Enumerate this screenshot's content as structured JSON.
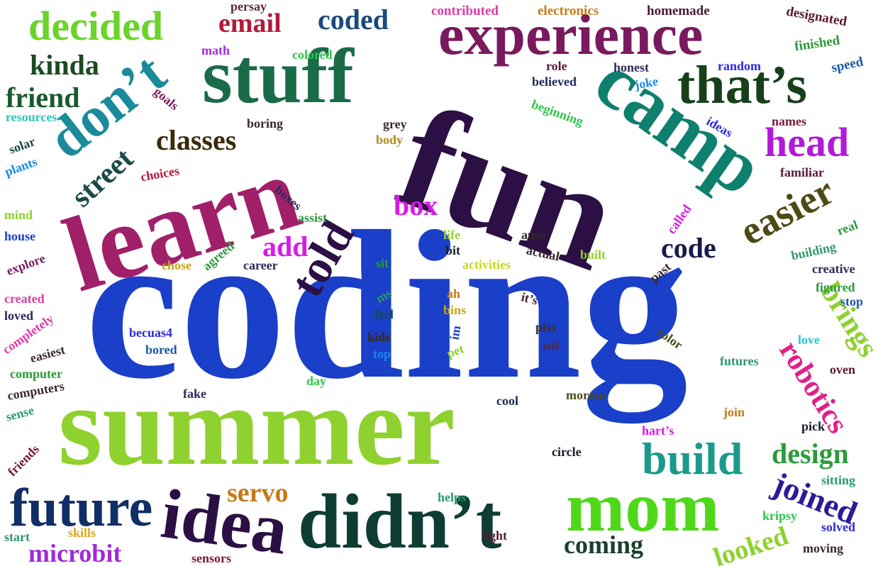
{
  "words": [
    {
      "text": "coding",
      "color": "#1a3fc8"
    },
    {
      "text": "summer",
      "color": "#8fd12e"
    },
    {
      "text": "fun",
      "color": "#2c0f44"
    },
    {
      "text": "learn",
      "color": "#a0206a"
    },
    {
      "text": "stuff",
      "color": "#1a6b4a"
    },
    {
      "text": "camp",
      "color": "#0f7f6e"
    },
    {
      "text": "experience",
      "color": "#7a1a5e"
    },
    {
      "text": "didn’t",
      "color": "#0d3d33"
    },
    {
      "text": "mom",
      "color": "#4fd81a"
    },
    {
      "text": "idea",
      "color": "#2c0f44"
    },
    {
      "text": "future",
      "color": "#112f66"
    },
    {
      "text": "don’t",
      "color": "#1b8a9a"
    },
    {
      "text": "that’s",
      "color": "#17401a"
    },
    {
      "text": "decided",
      "color": "#6bd42c"
    },
    {
      "text": "build",
      "color": "#1b9a8c"
    },
    {
      "text": "easier",
      "color": "#4f4a14"
    },
    {
      "text": "head",
      "color": "#b21ad8"
    },
    {
      "text": "told",
      "color": "#2c0f44"
    },
    {
      "text": "robotics",
      "color": "#e0208a"
    },
    {
      "text": "brings",
      "color": "#8fd12e"
    },
    {
      "text": "joined",
      "color": "#2c1a9a"
    },
    {
      "text": "design",
      "color": "#2c9a3a"
    },
    {
      "text": "looked",
      "color": "#8fd12e"
    },
    {
      "text": "microbit",
      "color": "#a02ad8"
    },
    {
      "text": "coming",
      "color": "#1a3f2e"
    },
    {
      "text": "classes",
      "color": "#3a2a0a"
    },
    {
      "text": "friend",
      "color": "#1a5a2e"
    },
    {
      "text": "kinda",
      "color": "#1a4a22"
    },
    {
      "text": "email",
      "color": "#b01a3a"
    },
    {
      "text": "coded",
      "color": "#1a4a7a"
    },
    {
      "text": "street",
      "color": "#1a4a4a"
    },
    {
      "text": "box",
      "color": "#d81ae8"
    },
    {
      "text": "add",
      "color": "#d81ae8"
    },
    {
      "text": "code",
      "color": "#1a1a4a"
    },
    {
      "text": "servo",
      "color": "#c47a1a"
    },
    {
      "text": "persay",
      "color": "#5a2a3a"
    },
    {
      "text": "contributed",
      "color": "#e03aa8"
    },
    {
      "text": "electronics",
      "color": "#c47a1a"
    },
    {
      "text": "homemade",
      "color": "#4a1a3a"
    },
    {
      "text": "designated",
      "color": "#5a1a2a"
    },
    {
      "text": "finished",
      "color": "#2c9a3a"
    },
    {
      "text": "speed",
      "color": "#1a5aa8"
    },
    {
      "text": "math",
      "color": "#a02ad8"
    },
    {
      "text": "colored",
      "color": "#2cc84a"
    },
    {
      "text": "random",
      "color": "#2c2ad8"
    },
    {
      "text": "honest",
      "color": "#2c2a5a"
    },
    {
      "text": "role",
      "color": "#5a1a3a"
    },
    {
      "text": "believed",
      "color": "#1a2a5a"
    },
    {
      "text": "joke",
      "color": "#1a8ae8"
    },
    {
      "text": "beginning",
      "color": "#2cc84a"
    },
    {
      "text": "resources",
      "color": "#2cc8b8"
    },
    {
      "text": "goals",
      "color": "#7a1a5e"
    },
    {
      "text": "boring",
      "color": "#3a2a2a"
    },
    {
      "text": "grey",
      "color": "#3a2a2a"
    },
    {
      "text": "body",
      "color": "#b08a1a"
    },
    {
      "text": "ideas",
      "color": "#2c2ad8"
    },
    {
      "text": "names",
      "color": "#7a1a3a"
    },
    {
      "text": "solar",
      "color": "#1a4a4a"
    },
    {
      "text": "plants",
      "color": "#1a8ae8"
    },
    {
      "text": "choices",
      "color": "#b01a3a"
    },
    {
      "text": "familiar",
      "color": "#5a1a3a"
    },
    {
      "text": "boxes",
      "color": "#2c2a5a"
    },
    {
      "text": "mind",
      "color": "#8fd12e"
    },
    {
      "text": "assist",
      "color": "#2c9a3a"
    },
    {
      "text": "called",
      "color": "#d81ae8"
    },
    {
      "text": "real",
      "color": "#2c9a3a"
    },
    {
      "text": "house",
      "color": "#1a3fc8"
    },
    {
      "text": "life",
      "color": "#8fd12e"
    },
    {
      "text": "ause",
      "color": "#3a2a2a"
    },
    {
      "text": "building",
      "color": "#2c9a6a"
    },
    {
      "text": "explore",
      "color": "#7a1a5e"
    },
    {
      "text": "chose",
      "color": "#c4a81a"
    },
    {
      "text": "agreed",
      "color": "#2c9a3a"
    },
    {
      "text": "career",
      "color": "#2c2a5a"
    },
    {
      "text": "sit",
      "color": "#2c9a3a"
    },
    {
      "text": "bit",
      "color": "#1a1a2a"
    },
    {
      "text": "actual",
      "color": "#3a2a2a"
    },
    {
      "text": "built",
      "color": "#8fd12e"
    },
    {
      "text": "activities",
      "color": "#c8d81a"
    },
    {
      "text": "past",
      "color": "#3a2a2a"
    },
    {
      "text": "creative",
      "color": "#2c2a5a"
    },
    {
      "text": "created",
      "color": "#e03aa8"
    },
    {
      "text": "loved",
      "color": "#2c2a5a"
    },
    {
      "text": "completely",
      "color": "#e03aa8"
    },
    {
      "text": "ms",
      "color": "#2c9a6a"
    },
    {
      "text": "feel",
      "color": "#1a4a4a"
    },
    {
      "text": "ah",
      "color": "#c47a1a"
    },
    {
      "text": "bins",
      "color": "#c4a81a"
    },
    {
      "text": "it’s",
      "color": "#3a2a2a"
    },
    {
      "text": "figured",
      "color": "#2c9a3a"
    },
    {
      "text": "stop",
      "color": "#1a5aa8"
    },
    {
      "text": "becuas4",
      "color": "#2c2ad8"
    },
    {
      "text": "bored",
      "color": "#1a5aa8"
    },
    {
      "text": "kids",
      "color": "#3a2a0a"
    },
    {
      "text": "top",
      "color": "#1a8ae8"
    },
    {
      "text": "im",
      "color": "#1a3fc8"
    },
    {
      "text": "pet",
      "color": "#8fd12e"
    },
    {
      "text": "piss",
      "color": "#3a2a2a"
    },
    {
      "text": "wii",
      "color": "#5a2a2a"
    },
    {
      "text": "color",
      "color": "#4a4a1a"
    },
    {
      "text": "love",
      "color": "#2cc8d8"
    },
    {
      "text": "easiest",
      "color": "#3a2a2a"
    },
    {
      "text": "computer",
      "color": "#2c9a3a"
    },
    {
      "text": "computers",
      "color": "#3a2a2a"
    },
    {
      "text": "day",
      "color": "#2cc84a"
    },
    {
      "text": "futures",
      "color": "#2c9a6a"
    },
    {
      "text": "oven",
      "color": "#5a1a2a"
    },
    {
      "text": "sense",
      "color": "#2c9a6a"
    },
    {
      "text": "fake",
      "color": "#2c2a5a"
    },
    {
      "text": "cool",
      "color": "#1a2a5a"
    },
    {
      "text": "moreso",
      "color": "#4a4a1a"
    },
    {
      "text": "join",
      "color": "#c47a1a"
    },
    {
      "text": "friends",
      "color": "#7a1a3a"
    },
    {
      "text": "circle",
      "color": "#1a1a2a"
    },
    {
      "text": "hart’s",
      "color": "#d81ae8"
    },
    {
      "text": "pick",
      "color": "#1a1a2a"
    },
    {
      "text": "sitting",
      "color": "#2c9a6a"
    },
    {
      "text": "helps",
      "color": "#2c9a6a"
    },
    {
      "text": "kripsy",
      "color": "#2cc84a"
    },
    {
      "text": "solved",
      "color": "#2c2ad8"
    },
    {
      "text": "start",
      "color": "#2c9a6a"
    },
    {
      "text": "skills",
      "color": "#e0a81a"
    },
    {
      "text": "light",
      "color": "#5a1a3a"
    },
    {
      "text": "moving",
      "color": "#3a2a2a"
    },
    {
      "text": "sensors",
      "color": "#7a1a3a"
    }
  ]
}
